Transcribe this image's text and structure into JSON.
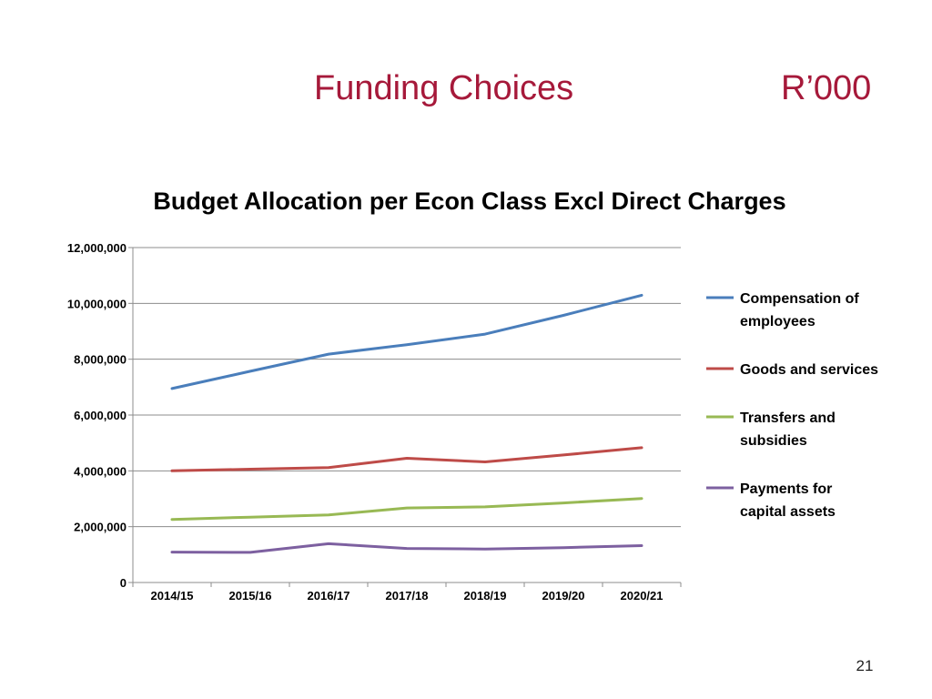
{
  "slide": {
    "title": "Funding Choices",
    "unit": "R’000",
    "page_number": "21"
  },
  "chart_data": {
    "type": "line",
    "title": "Budget Allocation per Econ Class Excl Direct Charges",
    "xlabel": "",
    "ylabel": "",
    "categories": [
      "2014/15",
      "2015/16",
      "2016/17",
      "2017/18",
      "2018/19",
      "2019/20",
      "2020/21"
    ],
    "ylim": [
      0,
      12000000
    ],
    "yticks": [
      0,
      2000000,
      4000000,
      6000000,
      8000000,
      10000000,
      12000000
    ],
    "ytick_labels": [
      "0",
      "2,000,000",
      "4,000,000",
      "6,000,000",
      "8,000,000",
      "10,000,000",
      "12,000,000"
    ],
    "grid": true,
    "legend_position": "right",
    "series": [
      {
        "name": "Compensation of employees",
        "legend_lines": [
          "Compensation of",
          "employees"
        ],
        "color": "#4a7ebb",
        "values": [
          6950000,
          7570000,
          8180000,
          8520000,
          8900000,
          9570000,
          10290000
        ]
      },
      {
        "name": "Goods and services",
        "legend_lines": [
          "Goods and services"
        ],
        "color": "#be4b48",
        "values": [
          4000000,
          4060000,
          4120000,
          4450000,
          4320000,
          4570000,
          4830000
        ]
      },
      {
        "name": "Transfers and subsidies",
        "legend_lines": [
          "Transfers and",
          "subsidies"
        ],
        "color": "#98b954",
        "values": [
          2260000,
          2340000,
          2420000,
          2670000,
          2710000,
          2850000,
          3010000
        ]
      },
      {
        "name": "Payments for capital assets",
        "legend_lines": [
          "Payments for",
          "capital assets"
        ],
        "color": "#7d60a0",
        "values": [
          1090000,
          1080000,
          1390000,
          1220000,
          1200000,
          1250000,
          1320000
        ]
      }
    ]
  }
}
